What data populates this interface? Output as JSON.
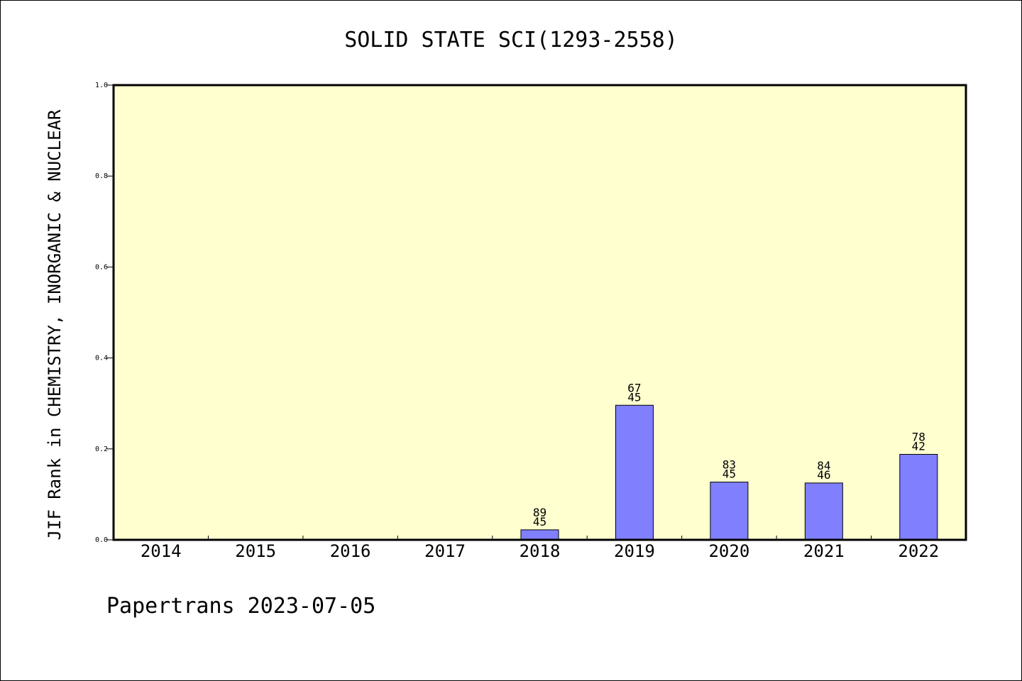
{
  "chart_data": {
    "type": "bar",
    "title": "SOLID STATE SCI(1293-2558)",
    "xlabel": "",
    "ylabel": "JIF Rank in CHEMISTRY, INORGANIC & NUCLEAR",
    "categories": [
      "2014",
      "2015",
      "2016",
      "2017",
      "2018",
      "2019",
      "2020",
      "2021",
      "2022"
    ],
    "values": [
      null,
      null,
      null,
      null,
      0.022,
      0.296,
      0.127,
      0.125,
      0.188
    ],
    "rank_labels": [
      null,
      null,
      null,
      null,
      [
        "89",
        "45"
      ],
      [
        "67",
        "45"
      ],
      [
        "83",
        "45"
      ],
      [
        "84",
        "46"
      ],
      [
        "78",
        "42"
      ]
    ],
    "ylim": [
      0,
      1.0
    ],
    "yticks": [
      "0.0",
      "0.2",
      "0.4",
      "0.6",
      "0.8",
      "1.0"
    ],
    "grid": false,
    "legend": "none",
    "colors": {
      "plot_background": "#ffffd0",
      "bar_fill": "#8080ff",
      "bar_stroke": "#000000",
      "axis": "#000000"
    }
  },
  "footer": {
    "text": "Papertrans 2023-07-05"
  }
}
